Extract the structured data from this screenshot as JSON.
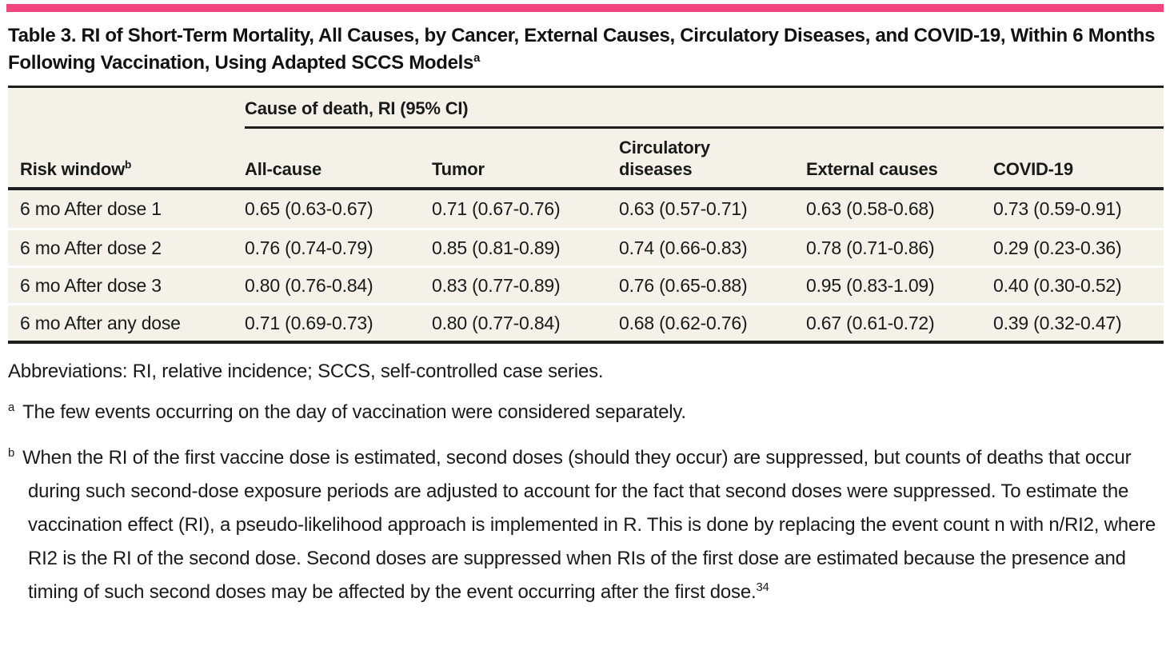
{
  "accent_color": "#F0457D",
  "title": {
    "text": "Table 3. RI of Short-Term Mortality, All Causes, by Cancer, External Causes, Circulatory Diseases, and COVID-19, Within 6 Months Following Vaccination, Using Adapted SCCS Models",
    "superscript": "a"
  },
  "table": {
    "span_header": "Cause of death, RI (95% CI)",
    "row_header": {
      "label": "Risk window",
      "superscript": "b"
    },
    "columns": [
      "All-cause",
      "Tumor",
      "Circulatory diseases",
      "External causes",
      "COVID-19"
    ],
    "rows": [
      {
        "label": "6 mo After dose 1",
        "values": [
          "0.65 (0.63-0.67)",
          "0.71 (0.67-0.76)",
          "0.63 (0.57-0.71)",
          "0.63 (0.58-0.68)",
          "0.73 (0.59-0.91)"
        ]
      },
      {
        "label": "6 mo After dose 2",
        "values": [
          "0.76 (0.74-0.79)",
          "0.85 (0.81-0.89)",
          "0.74 (0.66-0.83)",
          "0.78 (0.71-0.86)",
          "0.29 (0.23-0.36)"
        ]
      },
      {
        "label": "6 mo After dose 3",
        "values": [
          "0.80 (0.76-0.84)",
          "0.83 (0.77-0.89)",
          "0.76 (0.65-0.88)",
          "0.95 (0.83-1.09)",
          "0.40 (0.30-0.52)"
        ]
      },
      {
        "label": "6 mo After any dose",
        "values": [
          "0.71 (0.69-0.73)",
          "0.80 (0.77-0.84)",
          "0.68 (0.62-0.76)",
          "0.67 (0.61-0.72)",
          "0.39 (0.32-0.47)"
        ]
      }
    ]
  },
  "footnotes": {
    "abbreviations": "Abbreviations: RI, relative incidence; SCCS, self-controlled case series.",
    "notes": [
      {
        "marker": "a",
        "text": "The few events occurring on the day of vaccination were considered separately."
      },
      {
        "marker": "b",
        "text": "When the RI of the first vaccine dose is estimated, second doses (should they occur) are suppressed, but counts of deaths that occur during such second-dose exposure periods are adjusted to account for the fact that second doses were suppressed. To estimate the vaccination effect (RI), a pseudo-likelihood approach is implemented in R. This is done by replacing the event count n with n/RI2, where RI2 is the RI of the second dose. Second doses are suppressed when RIs of the first dose are estimated because the presence and timing of such second doses may be affected by the event occurring after the first dose.",
        "end_superscript": "34"
      }
    ]
  }
}
